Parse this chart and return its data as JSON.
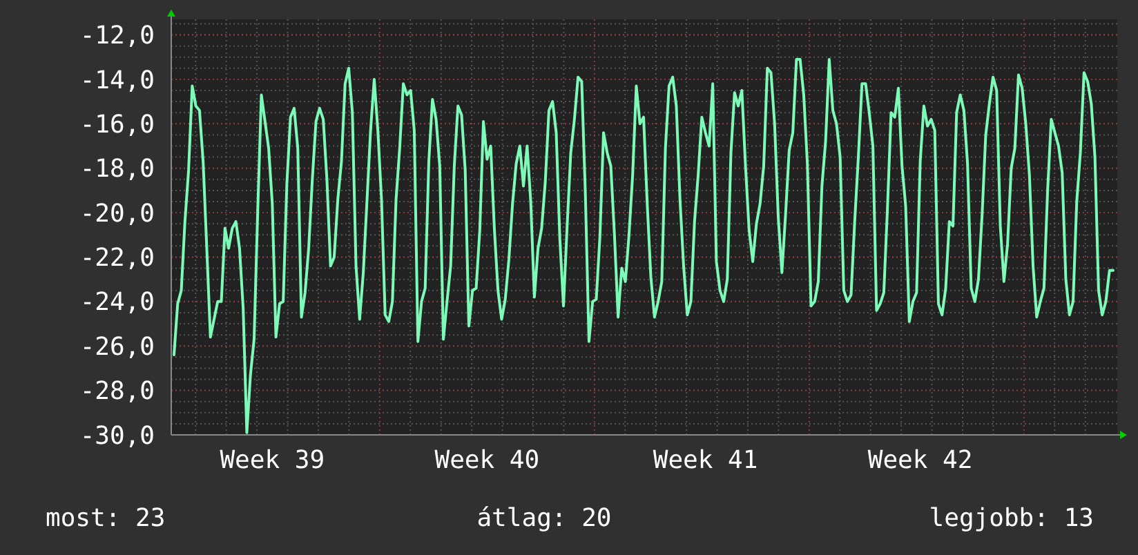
{
  "chart_data": {
    "type": "line",
    "categories": [
      null,
      null,
      null,
      null,
      null,
      null,
      null,
      null,
      null,
      null,
      null,
      null,
      null,
      null,
      null,
      null,
      null,
      null,
      null,
      null,
      null,
      null,
      null,
      null,
      null,
      null,
      null,
      "Week 39",
      null,
      null,
      null,
      null,
      null,
      null,
      null,
      null,
      null,
      null,
      null,
      null,
      null,
      null,
      null,
      null,
      null,
      null,
      null,
      null,
      null,
      null,
      null,
      null,
      null,
      null,
      null,
      null,
      null,
      null,
      null,
      null,
      null,
      null,
      null,
      null,
      null,
      null,
      null,
      null,
      null,
      null,
      null,
      null,
      null,
      null,
      null,
      null,
      null,
      null,
      null,
      null,
      null,
      null,
      null,
      null,
      null,
      null,
      "Week 40",
      null,
      null,
      null,
      null,
      null,
      null,
      null,
      null,
      null,
      null,
      null,
      null,
      null,
      null,
      null,
      null,
      null,
      null,
      null,
      null,
      null,
      null,
      null,
      null,
      null,
      null,
      null,
      null,
      null,
      null,
      null,
      null,
      null,
      null,
      null,
      null,
      null,
      null,
      null,
      null,
      null,
      null,
      null,
      null,
      null,
      null,
      null,
      null,
      null,
      null,
      null,
      null,
      null,
      null,
      null,
      null,
      null,
      null,
      null,
      "Week 41",
      null,
      null,
      null,
      null,
      null,
      null,
      null,
      null,
      null,
      null,
      null,
      null,
      null,
      null,
      null,
      null,
      null,
      null,
      null,
      null,
      null,
      null,
      null,
      null,
      null,
      null,
      null,
      null,
      null,
      null,
      null,
      null,
      null,
      null,
      null,
      null,
      null,
      null,
      null,
      null,
      null,
      null,
      null,
      null,
      null,
      null,
      null,
      null,
      null,
      null,
      null,
      null,
      null,
      null,
      null,
      null,
      null,
      null,
      "Week 42",
      null,
      null,
      null,
      null,
      null,
      null,
      null,
      null,
      null,
      null,
      null,
      null,
      null,
      null,
      null,
      null,
      null,
      null,
      null,
      null,
      null,
      null,
      null,
      null,
      null,
      null,
      null,
      null,
      null,
      null,
      null,
      null,
      null,
      null,
      null,
      null,
      null,
      null,
      null,
      null,
      null,
      null,
      null,
      null,
      null,
      null,
      null,
      null,
      null,
      null,
      null,
      null,
      null
    ],
    "series": [
      {
        "color": "#7dfab8",
        "values": [
          -26.4,
          -24.1,
          -23.5,
          -20.4,
          -18.1,
          -14.3,
          -15.2,
          -15.4,
          -17.7,
          -21.6,
          -25.6,
          -24.8,
          -24.0,
          -24.0,
          -20.7,
          -21.6,
          -20.7,
          -20.4,
          -21.6,
          -24.3,
          -29.9,
          -27.3,
          -25.7,
          -19.9,
          -14.7,
          -15.9,
          -17.1,
          -19.6,
          -25.6,
          -24.1,
          -24.0,
          -18.7,
          -15.7,
          -15.3,
          -17.1,
          -24.7,
          -23.6,
          -21.6,
          -18.5,
          -15.9,
          -15.3,
          -15.8,
          -18.5,
          -22.4,
          -22.0,
          -19.4,
          -17.7,
          -14.2,
          -13.5,
          -15.5,
          -22.4,
          -24.8,
          -22.7,
          -19.5,
          -16.3,
          -14.0,
          -16.3,
          -19.4,
          -24.6,
          -24.9,
          -24.0,
          -19.4,
          -17.1,
          -14.2,
          -14.7,
          -14.5,
          -16.3,
          -25.8,
          -24.0,
          -23.4,
          -17.7,
          -14.9,
          -15.8,
          -17.9,
          -25.7,
          -24.0,
          -22.4,
          -17.9,
          -15.2,
          -15.6,
          -18.1,
          -25.1,
          -23.5,
          -23.4,
          -20.8,
          -15.9,
          -17.6,
          -17.0,
          -20.7,
          -23.5,
          -24.8,
          -23.9,
          -22.1,
          -19.6,
          -17.8,
          -17.0,
          -18.8,
          -17.0,
          -19.5,
          -23.8,
          -21.6,
          -20.7,
          -18.6,
          -15.4,
          -15.0,
          -16.4,
          -21.2,
          -24.2,
          -20.6,
          -17.3,
          -15.8,
          -13.9,
          -14.1,
          -19.1,
          -25.8,
          -24.0,
          -23.9,
          -21.1,
          -16.4,
          -17.3,
          -17.9,
          -21.0,
          -24.7,
          -22.5,
          -23.1,
          -21.0,
          -18.3,
          -14.3,
          -16.0,
          -15.7,
          -19.6,
          -22.9,
          -24.7,
          -24.0,
          -23.1,
          -17.1,
          -14.3,
          -13.9,
          -15.2,
          -19.4,
          -22.4,
          -24.6,
          -24.0,
          -20.4,
          -18.3,
          -15.7,
          -16.4,
          -17.0,
          -14.2,
          -22.2,
          -23.5,
          -24.0,
          -23.0,
          -17.3,
          -14.6,
          -15.2,
          -14.5,
          -17.9,
          -20.8,
          -22.2,
          -20.5,
          -19.6,
          -17.9,
          -13.5,
          -13.7,
          -16.0,
          -20.2,
          -22.7,
          -20.1,
          -17.2,
          -16.4,
          -13.1,
          -13.1,
          -14.7,
          -17.8,
          -24.2,
          -24.0,
          -23.1,
          -18.8,
          -16.8,
          -13.1,
          -15.4,
          -16.0,
          -17.5,
          -23.5,
          -24.0,
          -23.7,
          -20.4,
          -17.5,
          -14.2,
          -14.2,
          -15.5,
          -17.0,
          -24.4,
          -24.1,
          -23.6,
          -19.8,
          -15.5,
          -15.7,
          -14.4,
          -17.9,
          -19.7,
          -24.9,
          -24.0,
          -23.6,
          -17.7,
          -15.2,
          -16.1,
          -15.8,
          -16.3,
          -24.1,
          -24.6,
          -23.4,
          -20.4,
          -20.6,
          -15.5,
          -14.7,
          -15.4,
          -17.8,
          -23.4,
          -24.0,
          -23.0,
          -20.1,
          -16.5,
          -15.1,
          -13.9,
          -14.5,
          -20.6,
          -23.1,
          -21.4,
          -18.0,
          -17.1,
          -13.8,
          -14.4,
          -16.0,
          -18.3,
          -22.4,
          -24.7,
          -24.0,
          -23.4,
          -19.0,
          -15.8,
          -16.4,
          -17.0,
          -18.2,
          -23.0,
          -24.6,
          -24.0,
          -19.5,
          -17.3,
          -13.7,
          -14.1,
          -15.1,
          -17.5,
          -23.5,
          -24.6,
          -24.0,
          -22.6,
          -22.6
        ]
      }
    ],
    "ylim": [
      -30,
      -11.3
    ],
    "yticks": [
      {
        "value": -12,
        "label": "-12,0"
      },
      {
        "value": -14,
        "label": "-14,0"
      },
      {
        "value": -16,
        "label": "-16,0"
      },
      {
        "value": -18,
        "label": "-18,0"
      },
      {
        "value": -20,
        "label": "-20,0"
      },
      {
        "value": -22,
        "label": "-22,0"
      },
      {
        "value": -24,
        "label": "-24,0"
      },
      {
        "value": -26,
        "label": "-26,0"
      },
      {
        "value": -28,
        "label": "-28,0"
      },
      {
        "value": -30,
        "label": "-30,0"
      }
    ],
    "grid": true,
    "annotations": [
      "most: 23",
      "átlag: 20",
      "legjobb: 13"
    ]
  }
}
